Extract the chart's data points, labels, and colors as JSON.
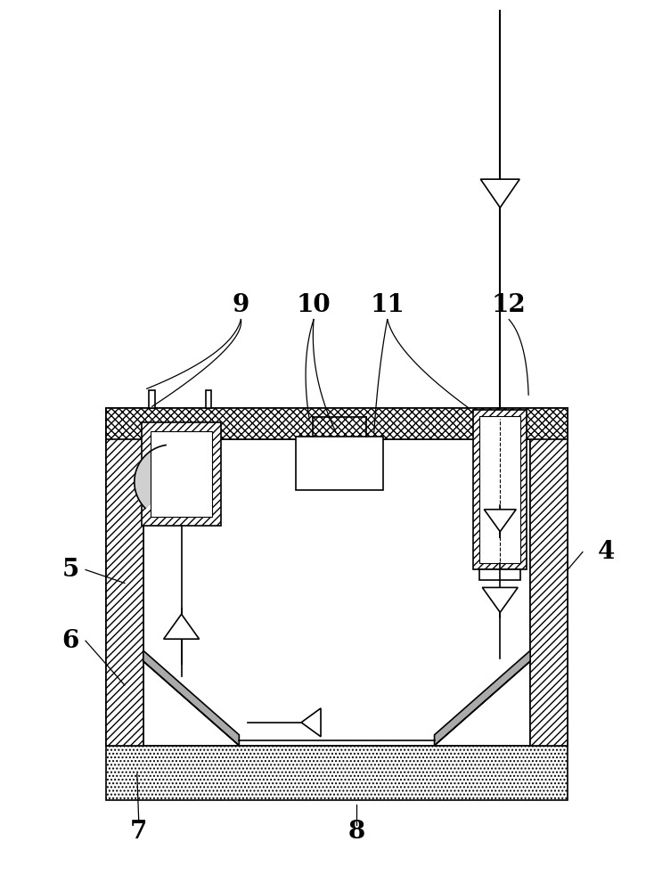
{
  "bg_color": "#ffffff",
  "line_color": "#000000",
  "label_fontsize": 20,
  "lw": 1.2
}
